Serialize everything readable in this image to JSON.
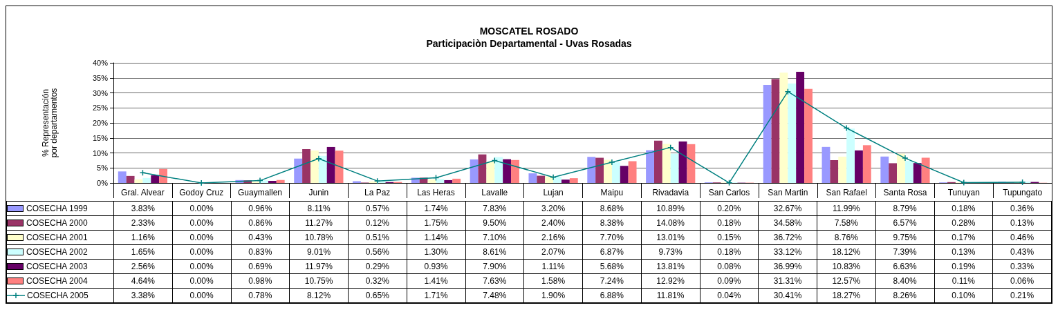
{
  "chart_data": {
    "type": "bar",
    "title": "MOSCATEL ROSADO",
    "subtitle": "Participaciòn Departamental - Uvas Rosadas",
    "ylabel": "% Representación\npor departamentos",
    "categories": [
      "Gral. Alvear",
      "Godoy Cruz",
      "Guaymallen",
      "Junin",
      "La Paz",
      "Las Heras",
      "Lavalle",
      "Lujan",
      "Maipu",
      "Rivadavia",
      "San Carlos",
      "San Martin",
      "San Rafael",
      "Santa Rosa",
      "Tunuyan",
      "Tupungato"
    ],
    "series": [
      {
        "name": "COSECHA 1999",
        "color": "#9999ff",
        "values": [
          3.83,
          0,
          0.96,
          8.11,
          0.57,
          1.74,
          7.83,
          3.2,
          8.68,
          10.89,
          0.2,
          32.67,
          11.99,
          8.79,
          0.18,
          0.36
        ],
        "value_labels": [
          "3.83%",
          "0.00%",
          "0.96%",
          "8.11%",
          "0.57%",
          "1.74%",
          "7.83%",
          "3.20%",
          "8.68%",
          "10.89%",
          "0.20%",
          "32.67%",
          "11.99%",
          "8.79%",
          "0.18%",
          "0.36%"
        ]
      },
      {
        "name": "COSECHA 2000",
        "color": "#993366",
        "values": [
          2.33,
          0,
          0.86,
          11.27,
          0.12,
          1.75,
          9.5,
          2.4,
          8.38,
          14.08,
          0.18,
          34.58,
          7.58,
          6.57,
          0.28,
          0.13
        ],
        "value_labels": [
          "2.33%",
          "0.00%",
          "0.86%",
          "11.27%",
          "0.12%",
          "1.75%",
          "9.50%",
          "2.40%",
          "8.38%",
          "14.08%",
          "0.18%",
          "34.58%",
          "7.58%",
          "6.57%",
          "0.28%",
          "0.13%"
        ]
      },
      {
        "name": "COSECHA 2001",
        "color": "#ffffcc",
        "values": [
          1.16,
          0,
          0.43,
          10.78,
          0.51,
          1.14,
          7.1,
          2.16,
          7.7,
          13.01,
          0.15,
          36.72,
          8.76,
          9.75,
          0.17,
          0.46
        ],
        "value_labels": [
          "1.16%",
          "0.00%",
          "0.43%",
          "10.78%",
          "0.51%",
          "1.14%",
          "7.10%",
          "2.16%",
          "7.70%",
          "13.01%",
          "0.15%",
          "36.72%",
          "8.76%",
          "9.75%",
          "0.17%",
          "0.46%"
        ]
      },
      {
        "name": "COSECHA 2002",
        "color": "#ccffff",
        "values": [
          1.65,
          0,
          0.83,
          9.01,
          0.56,
          1.3,
          8.61,
          2.07,
          6.87,
          9.73,
          0.18,
          33.12,
          18.12,
          7.39,
          0.13,
          0.43
        ],
        "value_labels": [
          "1.65%",
          "0.00%",
          "0.83%",
          "9.01%",
          "0.56%",
          "1.30%",
          "8.61%",
          "2.07%",
          "6.87%",
          "9.73%",
          "0.18%",
          "33.12%",
          "18.12%",
          "7.39%",
          "0.13%",
          "0.43%"
        ]
      },
      {
        "name": "COSECHA 2003",
        "color": "#660066",
        "values": [
          2.56,
          0,
          0.69,
          11.97,
          0.29,
          0.93,
          7.9,
          1.11,
          5.68,
          13.81,
          0.08,
          36.99,
          10.83,
          6.63,
          0.19,
          0.33
        ],
        "value_labels": [
          "2.56%",
          "0.00%",
          "0.69%",
          "11.97%",
          "0.29%",
          "0.93%",
          "7.90%",
          "1.11%",
          "5.68%",
          "13.81%",
          "0.08%",
          "36.99%",
          "10.83%",
          "6.63%",
          "0.19%",
          "0.33%"
        ]
      },
      {
        "name": "COSECHA 2004",
        "color": "#ff8080",
        "values": [
          4.64,
          0,
          0.98,
          10.75,
          0.32,
          1.41,
          7.63,
          1.58,
          7.24,
          12.92,
          0.09,
          31.31,
          12.57,
          8.4,
          0.11,
          0.06
        ],
        "value_labels": [
          "4.64%",
          "0.00%",
          "0.98%",
          "10.75%",
          "0.32%",
          "1.41%",
          "7.63%",
          "1.58%",
          "7.24%",
          "12.92%",
          "0.09%",
          "31.31%",
          "12.57%",
          "8.40%",
          "0.11%",
          "0.06%"
        ]
      },
      {
        "name": "COSECHA 2005",
        "type": "line",
        "color": "#008080",
        "marker": "cross",
        "values": [
          3.38,
          0,
          0.78,
          8.12,
          0.65,
          1.71,
          7.48,
          1.9,
          6.88,
          11.81,
          0.04,
          30.41,
          18.27,
          8.26,
          0.1,
          0.21
        ],
        "value_labels": [
          "3.38%",
          "0.00%",
          "0.78%",
          "8.12%",
          "0.65%",
          "1.71%",
          "7.48%",
          "1.90%",
          "6.88%",
          "11.81%",
          "0.04%",
          "30.41%",
          "18.27%",
          "8.26%",
          "0.10%",
          "0.21%"
        ]
      }
    ],
    "ylim": [
      0,
      40
    ],
    "yticks": [
      {
        "value": 0,
        "label": "0%"
      },
      {
        "value": 5,
        "label": "5%"
      },
      {
        "value": 10,
        "label": "10%"
      },
      {
        "value": 15,
        "label": "15%"
      },
      {
        "value": 20,
        "label": "20%"
      },
      {
        "value": 25,
        "label": "25%"
      },
      {
        "value": 30,
        "label": "30%"
      },
      {
        "value": 35,
        "label": "35%"
      },
      {
        "value": 40,
        "label": "40%"
      }
    ],
    "grid": "y",
    "legend": "bottom left"
  }
}
